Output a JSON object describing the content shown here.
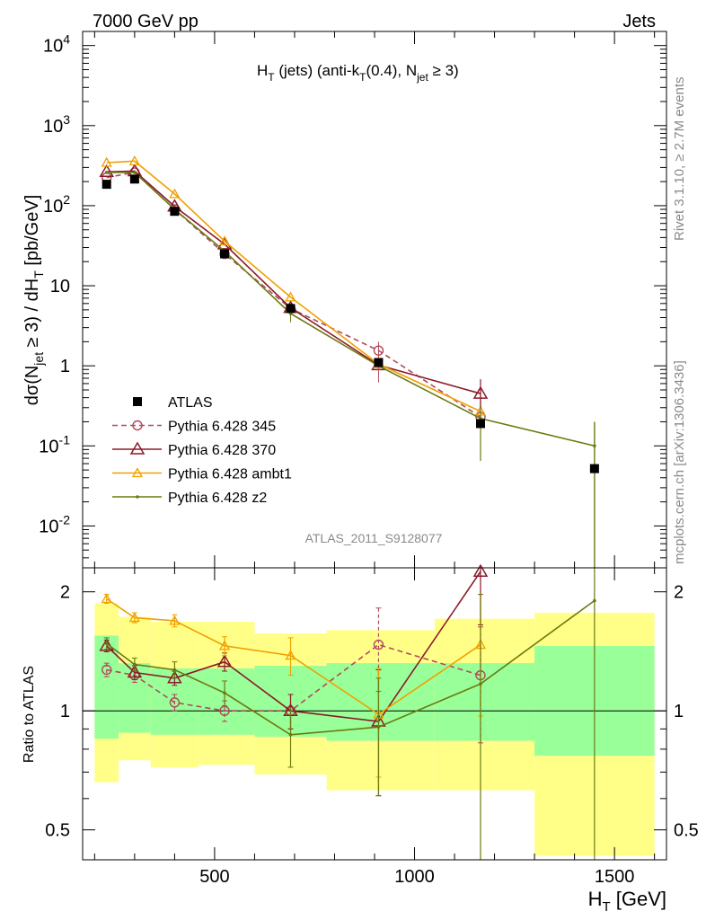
{
  "header": {
    "left": "7000 GeV pp",
    "right": "Jets"
  },
  "side": {
    "rivet": "Rivet 3.1.10, ≥ 2.7M events",
    "mcplots": "mcplots.cern.ch [arXiv:1306.3436]"
  },
  "plot_title": {
    "main": "H",
    "sub1": "T",
    "mid1": " (jets) (anti-k",
    "sub2": "T",
    "mid2": "(0.4), N",
    "sub3": "jet",
    "end": " ≥ 3)"
  },
  "analysis_id": "ATLAS_2011_S9128077",
  "ylabel": {
    "pre": "dσ(N",
    "sub1": "jet",
    "mid": " ≥ 3) / dH",
    "sub2": "T",
    "post": " [pb/GeV]"
  },
  "ratio_ylabel": "Ratio to ATLAS",
  "xlabel": {
    "pre": "H",
    "sub": "T",
    "post": " [GeV]"
  },
  "colors": {
    "atlas": "#000000",
    "p345": "#b04a5a",
    "p370": "#8b1a2a",
    "ambt1": "#f0a000",
    "z2": "#6b7a10",
    "band_inner": "#99ff99",
    "band_outer": "#ffff88"
  },
  "chart_data": {
    "type": "line",
    "x_range": [
      170,
      1630
    ],
    "main_ylim": [
      0.003,
      15000
    ],
    "main_yscale": "log",
    "ratio_ylim": [
      0.42,
      2.3
    ],
    "ratio_yscale": "log",
    "x_ticks": [
      {
        "v": 500,
        "label": "500"
      },
      {
        "v": 1000,
        "label": "1000"
      },
      {
        "v": 1500,
        "label": "1500"
      }
    ],
    "main_y_ticks": [
      {
        "v": 0.01,
        "base": "10",
        "exp": "-2"
      },
      {
        "v": 0.1,
        "base": "10",
        "exp": "-1"
      },
      {
        "v": 1,
        "base": "1",
        "exp": ""
      },
      {
        "v": 10,
        "base": "10",
        "exp": ""
      },
      {
        "v": 100,
        "base": "10",
        "exp": "2"
      },
      {
        "v": 1000,
        "base": "10",
        "exp": "3"
      },
      {
        "v": 10000,
        "base": "10",
        "exp": "4"
      }
    ],
    "ratio_y_ticks": [
      {
        "v": 0.5,
        "label": "0.5"
      },
      {
        "v": 1,
        "label": "1"
      },
      {
        "v": 2,
        "label": "2"
      }
    ],
    "bins": [
      {
        "lo": 200,
        "hi": 260
      },
      {
        "lo": 260,
        "hi": 340
      },
      {
        "lo": 340,
        "hi": 460
      },
      {
        "lo": 460,
        "hi": 600
      },
      {
        "lo": 600,
        "hi": 780
      },
      {
        "lo": 780,
        "hi": 1050
      },
      {
        "lo": 1050,
        "hi": 1300
      },
      {
        "lo": 1300,
        "hi": 1600
      }
    ],
    "atlas": {
      "name": "ATLAS",
      "x": [
        230,
        300,
        400,
        525,
        690,
        910,
        1165,
        1450
      ],
      "y": [
        185,
        215,
        85,
        25,
        5.2,
        1.1,
        0.19,
        0.052
      ]
    },
    "band_inner": [
      [
        0.85,
        1.55
      ],
      [
        0.88,
        1.32
      ],
      [
        0.87,
        1.28
      ],
      [
        0.87,
        1.28
      ],
      [
        0.86,
        1.3
      ],
      [
        0.84,
        1.32
      ],
      [
        0.84,
        1.32
      ],
      [
        0.77,
        1.46
      ]
    ],
    "band_outer": [
      [
        0.66,
        1.87
      ],
      [
        0.75,
        1.73
      ],
      [
        0.72,
        1.68
      ],
      [
        0.73,
        1.68
      ],
      [
        0.69,
        1.57
      ],
      [
        0.63,
        1.6
      ],
      [
        0.63,
        1.71
      ],
      [
        0.43,
        1.77
      ]
    ],
    "series": [
      {
        "name": "Pythia 6.428 345",
        "key": "p345",
        "marker": "circle",
        "dash": true,
        "x": [
          230,
          300,
          400,
          525,
          690,
          910,
          1165
        ],
        "y": [
          225,
          260,
          90,
          25,
          5.2,
          1.55,
          0.23
        ],
        "ratio": [
          1.27,
          1.23,
          1.05,
          1.0,
          1.0,
          1.47,
          1.23
        ],
        "ratio_err": [
          0.05,
          0.05,
          0.05,
          0.06,
          0.1,
          0.35,
          0.4
        ]
      },
      {
        "name": "Pythia 6.428 370",
        "key": "p370",
        "marker": "triangle",
        "dash": false,
        "x": [
          230,
          300,
          400,
          525,
          690,
          910,
          1165
        ],
        "y": [
          265,
          270,
          98,
          33,
          5.3,
          1.02,
          0.45
        ],
        "ratio": [
          1.46,
          1.25,
          1.21,
          1.33,
          1.0,
          0.94,
          2.25
        ],
        "ratio_err": [
          0.05,
          0.05,
          0.05,
          0.07,
          0.1,
          0.33,
          0.6
        ]
      },
      {
        "name": "Pythia 6.428 ambt1",
        "key": "ambt1",
        "marker": "triangle-small",
        "dash": false,
        "x": [
          230,
          300,
          400,
          525,
          690,
          910,
          1165
        ],
        "y": [
          345,
          360,
          140,
          36,
          7.2,
          1.05,
          0.27
        ],
        "ratio": [
          1.92,
          1.72,
          1.69,
          1.46,
          1.38,
          0.98,
          1.47
        ],
        "ratio_err": [
          0.05,
          0.05,
          0.06,
          0.08,
          0.15,
          0.3,
          0.5
        ]
      },
      {
        "name": "Pythia 6.428 z2",
        "key": "z2",
        "marker": "dot",
        "dash": false,
        "x": [
          230,
          300,
          400,
          525,
          690,
          910,
          1165,
          1450
        ],
        "y": [
          260,
          260,
          90,
          27,
          4.5,
          1.0,
          0.22,
          0.1
        ],
        "ratio": [
          1.48,
          1.31,
          1.27,
          1.11,
          0.87,
          0.91,
          1.17,
          1.9
        ],
        "ratio_err": [
          0.05,
          0.05,
          0.06,
          0.08,
          0.15,
          0.3,
          0.8,
          1.6
        ]
      }
    ]
  }
}
